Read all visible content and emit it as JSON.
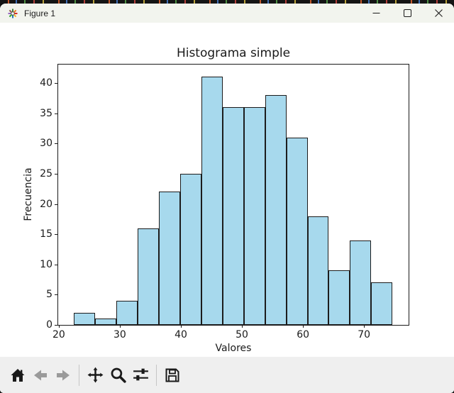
{
  "titlebar": {
    "title": "Figure 1",
    "app_icon": "matplotlib-logo-icon",
    "controls": [
      "minimize",
      "maximize",
      "close"
    ]
  },
  "toolbar": {
    "tools": [
      "home",
      "back",
      "forward",
      "pan",
      "zoom-to-rect",
      "configure-subplots",
      "save"
    ],
    "disabled_tools": [
      "back",
      "forward"
    ]
  },
  "chart_data": {
    "type": "bar",
    "subtype": "histogram",
    "title": "Histograma simple",
    "xlabel": "Valores",
    "ylabel": "Frecuencia",
    "bin_start": 22.5,
    "bin_width": 3.477,
    "values": [
      2,
      1,
      4,
      16,
      22,
      25,
      41,
      36,
      36,
      38,
      31,
      18,
      9,
      14,
      7
    ],
    "x_ticks": [
      20,
      30,
      40,
      50,
      60,
      70
    ],
    "y_ticks": [
      0,
      5,
      10,
      15,
      20,
      25,
      30,
      35,
      40
    ],
    "xlim": [
      19.9,
      77.3
    ],
    "ylim": [
      0,
      43.05
    ],
    "grid": false,
    "legend": null,
    "bar_color": "#a7d9ed",
    "bar_edge_color": "#1c1c1c"
  }
}
